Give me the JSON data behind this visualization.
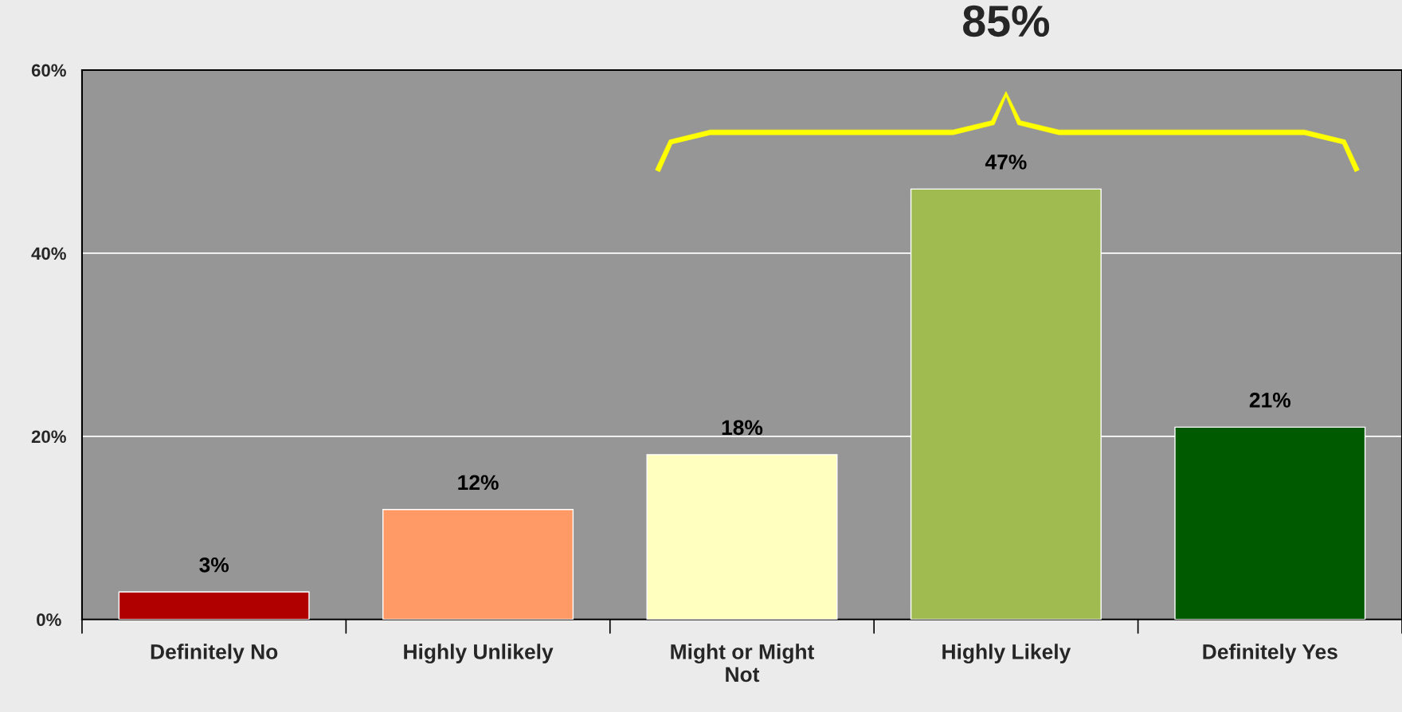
{
  "chart_data": {
    "type": "bar",
    "categories": [
      "Definitely No",
      "Highly Unlikely",
      "Might or Might\nNot",
      "Highly Likely",
      "Definitely Yes"
    ],
    "values": [
      3,
      12,
      18,
      47,
      21
    ],
    "colors": [
      "#b00000",
      "#ff9a66",
      "#ffffc0",
      "#a0bc50",
      "#005a00"
    ],
    "value_labels": [
      "3%",
      "12%",
      "18%",
      "47%",
      "21%"
    ],
    "ylim": [
      0,
      60
    ],
    "yticks": [
      {
        "value": 0,
        "label": "0%"
      },
      {
        "value": 20,
        "label": "20%"
      },
      {
        "value": 40,
        "label": "40%"
      },
      {
        "value": 60,
        "label": "60%"
      }
    ],
    "grid": "y",
    "annotations": [
      "85%"
    ]
  }
}
